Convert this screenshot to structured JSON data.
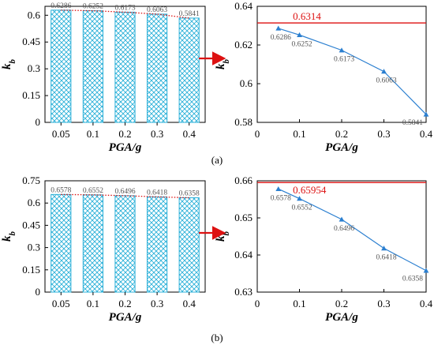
{
  "chart_data": [
    {
      "panel": "(a)",
      "type": "bar",
      "xlabel": "PGA/g",
      "ylabel": "k_b",
      "categories": [
        "0.05",
        "0.1",
        "0.2",
        "0.3",
        "0.4"
      ],
      "values": [
        0.6286,
        0.6252,
        0.6173,
        0.6063,
        0.5841
      ],
      "value_labels": [
        "0.6286",
        "0.6252",
        "0.6173",
        "0.6063",
        "0.5841"
      ],
      "ylim": [
        0,
        0.65
      ],
      "yticks": [
        "0",
        "0.15",
        "0.3",
        "0.45",
        "0.6"
      ],
      "trend_line": "dotted red",
      "bar_style": "cross-hatched, cyan outline"
    },
    {
      "panel": "(a)",
      "type": "line",
      "xlabel": "PGA/g",
      "ylabel": "k_b",
      "x": [
        0.05,
        0.1,
        0.2,
        0.3,
        0.4
      ],
      "y": [
        0.6286,
        0.6252,
        0.6173,
        0.6063,
        0.5841
      ],
      "value_labels": [
        "0.6286",
        "0.6252",
        "0.6173",
        "0.6063",
        "0.5841"
      ],
      "xlim": [
        0,
        0.4
      ],
      "ylim": [
        0.58,
        0.64
      ],
      "xticks": [
        "0",
        "0.1",
        "0.2",
        "0.3",
        "0.4"
      ],
      "yticks": [
        "0.58",
        "0.6",
        "0.62",
        "0.64"
      ],
      "reference_line": {
        "value": 0.6314,
        "label": "0.6314",
        "color": "#dd1111"
      },
      "series_color": "#2b7fd0",
      "marker": "triangle"
    },
    {
      "panel": "(b)",
      "type": "bar",
      "xlabel": "PGA/g",
      "ylabel": "k_b",
      "categories": [
        "0.05",
        "0.1",
        "0.2",
        "0.3",
        "0.4"
      ],
      "values": [
        0.6578,
        0.6552,
        0.6496,
        0.6418,
        0.6358
      ],
      "value_labels": [
        "0.6578",
        "0.6552",
        "0.6496",
        "0.6418",
        "0.6358"
      ],
      "ylim": [
        0,
        0.75
      ],
      "yticks": [
        "0",
        "0.15",
        "0.3",
        "0.45",
        "0.6",
        "0.75"
      ],
      "trend_line": "dotted red",
      "bar_style": "cross-hatched, cyan outline"
    },
    {
      "panel": "(b)",
      "type": "line",
      "xlabel": "PGA/g",
      "ylabel": "k_b",
      "x": [
        0.05,
        0.1,
        0.2,
        0.3,
        0.4
      ],
      "y": [
        0.6578,
        0.6552,
        0.6496,
        0.6418,
        0.6358
      ],
      "value_labels": [
        "0.6578",
        "0.6552",
        "0.6496",
        "0.6418",
        "0.6358"
      ],
      "xlim": [
        0,
        0.4
      ],
      "ylim": [
        0.63,
        0.66
      ],
      "xticks": [
        "0",
        "0.1",
        "0.2",
        "0.3",
        "0.4"
      ],
      "yticks": [
        "0.63",
        "0.64",
        "0.65",
        "0.66"
      ],
      "reference_line": {
        "value": 0.65954,
        "label": "0.65954",
        "color": "#dd1111"
      },
      "series_color": "#2b7fd0",
      "marker": "triangle"
    }
  ],
  "captions": [
    "(a)",
    "(b)"
  ],
  "colors": {
    "bar_edge": "#2ab0d8",
    "trend": "#dd1111",
    "arrow": "#dd1111",
    "series": "#2b7fd0"
  }
}
